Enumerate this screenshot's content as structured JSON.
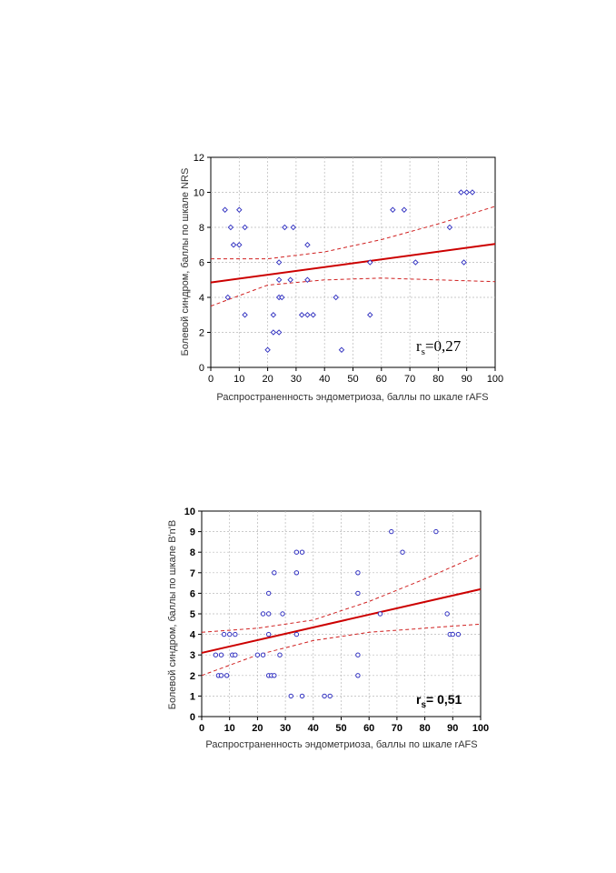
{
  "chart_data": [
    {
      "type": "scatter",
      "title": "",
      "xlabel": "Распространенность эндометриоза, баллы по шкале rAFS",
      "ylabel": "Болевой синдром, баллы по шкале NRS",
      "xlim": [
        0,
        100
      ],
      "ylim": [
        0,
        12
      ],
      "xticks": [
        "0",
        "10",
        "20",
        "30",
        "40",
        "50",
        "60",
        "70",
        "80",
        "90",
        "100"
      ],
      "yticks": [
        "0",
        "2",
        "4",
        "6",
        "8",
        "10",
        "12"
      ],
      "grid": true,
      "annotation": {
        "symbol": "r",
        "subscript": "s",
        "value": "=0,27"
      },
      "colors": {
        "points": "#3030c0",
        "fit": "#cc0000",
        "ci": "#d02020"
      },
      "points": [
        [
          5,
          9
        ],
        [
          6,
          4
        ],
        [
          7,
          8
        ],
        [
          8,
          7
        ],
        [
          10,
          9
        ],
        [
          10,
          7
        ],
        [
          12,
          8
        ],
        [
          12,
          3
        ],
        [
          20,
          1
        ],
        [
          22,
          3
        ],
        [
          22,
          2
        ],
        [
          24,
          2
        ],
        [
          24,
          4
        ],
        [
          24,
          6
        ],
        [
          24,
          5
        ],
        [
          25,
          4
        ],
        [
          26,
          8
        ],
        [
          28,
          5
        ],
        [
          29,
          8
        ],
        [
          32,
          3
        ],
        [
          34,
          7
        ],
        [
          34,
          5
        ],
        [
          34,
          3
        ],
        [
          36,
          3
        ],
        [
          44,
          4
        ],
        [
          46,
          1
        ],
        [
          56,
          6
        ],
        [
          56,
          3
        ],
        [
          64,
          9
        ],
        [
          68,
          9
        ],
        [
          72,
          6
        ],
        [
          84,
          8
        ],
        [
          88,
          10
        ],
        [
          89,
          6
        ],
        [
          90,
          10
        ],
        [
          92,
          10
        ]
      ],
      "fit_line": {
        "x": [
          0,
          100
        ],
        "y": [
          4.85,
          7.05
        ]
      },
      "ci_upper": {
        "x": [
          0,
          20,
          40,
          60,
          80,
          100
        ],
        "y": [
          6.2,
          6.2,
          6.6,
          7.3,
          8.2,
          9.2
        ]
      },
      "ci_lower": {
        "x": [
          0,
          20,
          40,
          60,
          80,
          100
        ],
        "y": [
          3.5,
          4.7,
          5.0,
          5.1,
          5.0,
          4.9
        ]
      }
    },
    {
      "type": "scatter",
      "title": "",
      "xlabel": "Распространенность эндометриоза, баллы по шкале rAFS",
      "ylabel": "Болевой синдром, баллы по шкале В'n'В",
      "xlim": [
        0,
        100
      ],
      "ylim": [
        0,
        10
      ],
      "xticks": [
        "0",
        "10",
        "20",
        "30",
        "40",
        "50",
        "60",
        "70",
        "80",
        "90",
        "100"
      ],
      "yticks": [
        "0",
        "1",
        "2",
        "3",
        "4",
        "5",
        "6",
        "7",
        "8",
        "9",
        "10"
      ],
      "grid": true,
      "annotation": {
        "symbol": "r",
        "subscript": "s",
        "value": "= 0,51"
      },
      "colors": {
        "points": "#3030c0",
        "fit": "#cc0000",
        "ci": "#d02020"
      },
      "points": [
        [
          5,
          3
        ],
        [
          6,
          2
        ],
        [
          7,
          2
        ],
        [
          7,
          3
        ],
        [
          8,
          4
        ],
        [
          9,
          2
        ],
        [
          10,
          4
        ],
        [
          11,
          3
        ],
        [
          12,
          4
        ],
        [
          12,
          3
        ],
        [
          20,
          3
        ],
        [
          22,
          3
        ],
        [
          22,
          5
        ],
        [
          24,
          6
        ],
        [
          24,
          5
        ],
        [
          24,
          4
        ],
        [
          24,
          2
        ],
        [
          25,
          2
        ],
        [
          26,
          2
        ],
        [
          26,
          7
        ],
        [
          28,
          3
        ],
        [
          29,
          5
        ],
        [
          32,
          1
        ],
        [
          34,
          8
        ],
        [
          34,
          7
        ],
        [
          34,
          4
        ],
        [
          36,
          8
        ],
        [
          36,
          1
        ],
        [
          44,
          1
        ],
        [
          46,
          1
        ],
        [
          56,
          7
        ],
        [
          56,
          6
        ],
        [
          56,
          3
        ],
        [
          56,
          2
        ],
        [
          64,
          5
        ],
        [
          68,
          9
        ],
        [
          72,
          8
        ],
        [
          84,
          9
        ],
        [
          88,
          5
        ],
        [
          89,
          4
        ],
        [
          90,
          4
        ],
        [
          92,
          4
        ]
      ],
      "fit_line": {
        "x": [
          0,
          100
        ],
        "y": [
          3.1,
          6.2
        ]
      },
      "ci_upper": {
        "x": [
          0,
          20,
          40,
          60,
          80,
          100
        ],
        "y": [
          4.1,
          4.3,
          4.7,
          5.6,
          6.7,
          7.9
        ]
      },
      "ci_lower": {
        "x": [
          0,
          20,
          40,
          60,
          80,
          100
        ],
        "y": [
          2.0,
          3.0,
          3.7,
          4.1,
          4.3,
          4.5
        ]
      }
    }
  ]
}
